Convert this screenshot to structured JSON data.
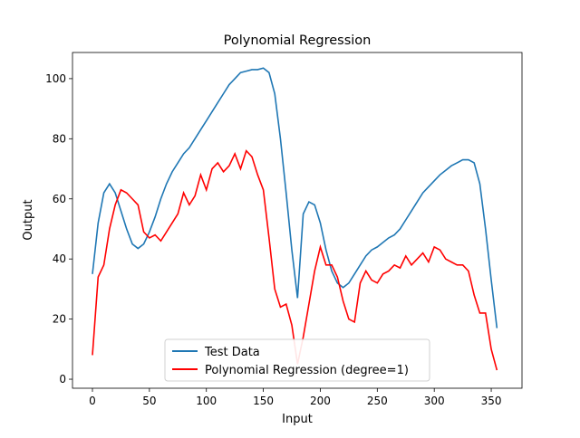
{
  "chart_data": {
    "type": "line",
    "title": "Polynomial Regression",
    "xlabel": "Input",
    "ylabel": "Output",
    "x": [
      0,
      5,
      10,
      15,
      20,
      25,
      30,
      35,
      40,
      45,
      50,
      55,
      60,
      65,
      70,
      75,
      80,
      85,
      90,
      95,
      100,
      105,
      110,
      115,
      120,
      125,
      130,
      135,
      140,
      145,
      150,
      155,
      160,
      165,
      170,
      175,
      180,
      185,
      190,
      195,
      200,
      205,
      210,
      215,
      220,
      225,
      230,
      235,
      240,
      245,
      250,
      255,
      260,
      265,
      270,
      275,
      280,
      285,
      290,
      295,
      300,
      305,
      310,
      315,
      320,
      325,
      330,
      335,
      340,
      345,
      350,
      355
    ],
    "series": [
      {
        "name": "Test Data",
        "color": "#1f77b4",
        "values": [
          35,
          52,
          62,
          65,
          62,
          56,
          50,
          45,
          43.5,
          45,
          49,
          54,
          60,
          65,
          69,
          72,
          75,
          77,
          80,
          83,
          86,
          89,
          92,
          95,
          98,
          100,
          102,
          102.5,
          103,
          103,
          103.5,
          102,
          95,
          80,
          62,
          43,
          27,
          55,
          59,
          58,
          52,
          43,
          36,
          32,
          30.5,
          32,
          35,
          38,
          41,
          43,
          44,
          45.5,
          47,
          48,
          50,
          53,
          56,
          59,
          62,
          64,
          66,
          68,
          69.5,
          71,
          72,
          73,
          73,
          72,
          65,
          50,
          33,
          17
        ]
      },
      {
        "name": "Polynomial Regression (degree=1)",
        "color": "#ff0000",
        "values": [
          8,
          34,
          38,
          50,
          58,
          63,
          62,
          60,
          58,
          49,
          47,
          48,
          46,
          49,
          52,
          55,
          62,
          58,
          61,
          68,
          63,
          70,
          72,
          69,
          71,
          75,
          70,
          76,
          74,
          68,
          63,
          47,
          30,
          24,
          25,
          18,
          5,
          14,
          25,
          36,
          44,
          38,
          38,
          34,
          26,
          20,
          19,
          32,
          36,
          33,
          32,
          35,
          36,
          38,
          37,
          41,
          38,
          40,
          42,
          39,
          44,
          43,
          40,
          39,
          38,
          38,
          36,
          28,
          22,
          22,
          10,
          3
        ]
      }
    ],
    "xlim": [
      -17.5,
      377
    ],
    "ylim": [
      -3,
      108.7
    ],
    "xticks": [
      0,
      50,
      100,
      150,
      200,
      250,
      300,
      350
    ],
    "yticks": [
      0,
      20,
      40,
      60,
      80,
      100
    ],
    "legend": "lower center"
  }
}
